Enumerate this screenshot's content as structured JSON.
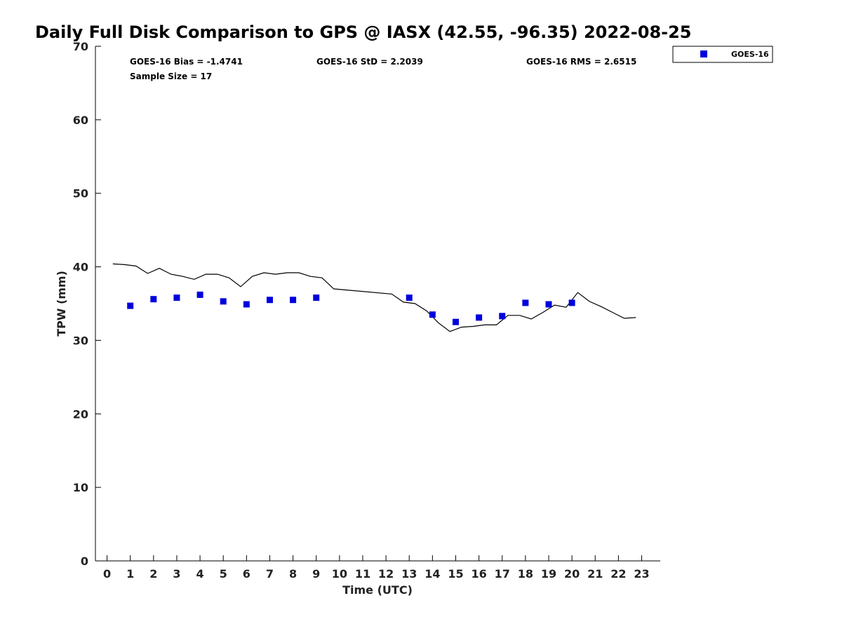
{
  "chart_data": {
    "type": "scatter",
    "title": "Daily Full Disk Comparison to GPS @ IASX (42.55, -96.35) 2022-08-25",
    "xlabel": "Time (UTC)",
    "ylabel": "TPW (mm)",
    "xlim": [
      -0.5,
      23.8
    ],
    "ylim": [
      0,
      70
    ],
    "xticks": [
      "0",
      "1",
      "2",
      "3",
      "4",
      "5",
      "6",
      "7",
      "8",
      "9",
      "10",
      "11",
      "12",
      "13",
      "14",
      "15",
      "16",
      "17",
      "18",
      "19",
      "20",
      "21",
      "22",
      "23"
    ],
    "yticks": [
      "0",
      "10",
      "20",
      "30",
      "40",
      "50",
      "60",
      "70"
    ],
    "grid": false,
    "legend_position": "top-right, outside plot",
    "stats": {
      "bias": "GOES-16 Bias = -1.4741",
      "std": "GOES-16 StD = 2.2039",
      "rms": "GOES-16 RMS = 2.6515",
      "sample_size": "Sample Size = 17"
    },
    "series": [
      {
        "name": "GOES-16",
        "kind": "scatter",
        "marker": "square",
        "color": "#0000dd",
        "x": [
          1,
          2,
          3,
          4,
          5,
          6,
          7,
          8,
          9,
          13,
          14,
          15,
          16,
          17,
          18,
          19,
          20
        ],
        "y": [
          34.7,
          35.6,
          35.8,
          36.2,
          35.3,
          34.9,
          35.5,
          35.5,
          35.8,
          35.8,
          33.5,
          32.5,
          33.1,
          33.3,
          35.1,
          34.9,
          35.1
        ]
      },
      {
        "kind": "line",
        "color": "#000000",
        "x": [
          0.25,
          0.75,
          1.25,
          1.75,
          2.25,
          2.75,
          3.25,
          3.75,
          4.25,
          4.75,
          5.25,
          5.75,
          6.25,
          6.75,
          7.25,
          7.75,
          8.25,
          8.75,
          9.25,
          9.75,
          12.25,
          12.75,
          13.25,
          13.75,
          14.25,
          14.75,
          15.25,
          15.75,
          16.25,
          16.75,
          17.25,
          17.75,
          18.25,
          18.75,
          19.25,
          19.75,
          20.25,
          20.75,
          21.25,
          21.75,
          22.25,
          22.75
        ],
        "y": [
          40.4,
          40.3,
          40.1,
          39.1,
          39.8,
          39.0,
          38.7,
          38.3,
          39.0,
          39.0,
          38.5,
          37.3,
          38.7,
          39.2,
          39.0,
          39.2,
          39.2,
          38.7,
          38.5,
          37.0,
          36.3,
          35.2,
          35.0,
          34.0,
          32.4,
          31.2,
          31.8,
          31.9,
          32.1,
          32.1,
          33.4,
          33.4,
          32.9,
          33.8,
          34.8,
          34.5,
          36.5,
          35.3,
          34.6,
          33.8,
          33.0,
          33.1
        ]
      }
    ]
  },
  "colors": {
    "marker": "#0000dd",
    "line": "#000000",
    "axis": "#000000"
  }
}
